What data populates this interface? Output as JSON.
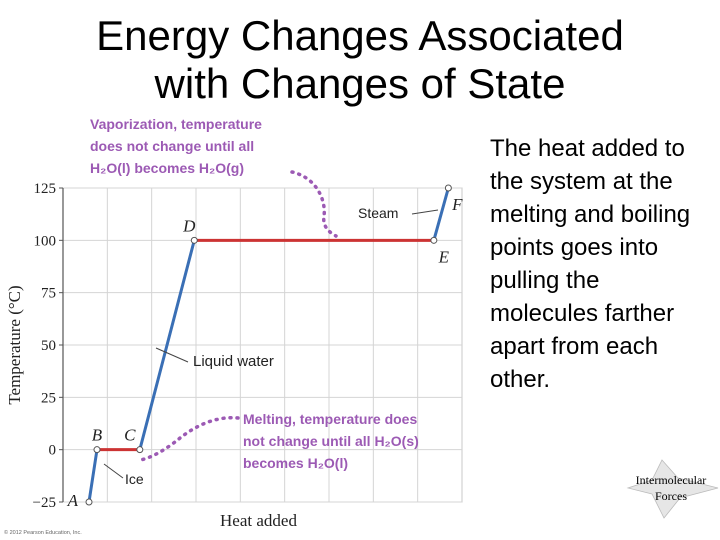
{
  "slide": {
    "title_line1": "Energy Changes Associated",
    "title_line2": "with Changes of State",
    "body": "The heat added to the system at the melting and boiling points goes into pulling the molecules farther apart from each other.",
    "footer_line1": "Intermolecular",
    "footer_line2": "Forces"
  },
  "chart_data": {
    "type": "line",
    "title": "",
    "xlabel": "Heat added",
    "ylabel": "Temperature (°C)",
    "ylim": [
      -25,
      125
    ],
    "yticks": [
      125,
      100,
      75,
      50,
      25,
      0,
      -25
    ],
    "grid": true,
    "copyright": "© 2012 Pearson Education, Inc.",
    "series": [
      {
        "segments": [
          {
            "from": "A",
            "to": "B",
            "phase": "solid",
            "y": [
              -25,
              0
            ],
            "color": "#3a6fb5"
          },
          {
            "from": "B",
            "to": "C",
            "phase": "melting",
            "y": [
              0,
              0
            ],
            "color": "#cc3333"
          },
          {
            "from": "C",
            "to": "D",
            "phase": "liquid",
            "y": [
              0,
              100
            ],
            "color": "#3a6fb5"
          },
          {
            "from": "D",
            "to": "E",
            "phase": "vaporization",
            "y": [
              100,
              100
            ],
            "color": "#cc3333"
          },
          {
            "from": "E",
            "to": "F",
            "phase": "gas",
            "y": [
              100,
              125
            ],
            "color": "#3a6fb5"
          }
        ],
        "points": [
          {
            "label": "A",
            "x": 0.0,
            "y": -25
          },
          {
            "label": "B",
            "x": 0.022,
            "y": 0
          },
          {
            "label": "C",
            "x": 0.14,
            "y": 0
          },
          {
            "label": "D",
            "x": 0.29,
            "y": 100
          },
          {
            "label": "E",
            "x": 0.95,
            "y": 100
          },
          {
            "label": "F",
            "x": 0.99,
            "y": 125
          }
        ]
      }
    ],
    "annotations": {
      "vaporization": [
        "Vaporization, temperature",
        "does not change until all",
        "H₂O(l) becomes H₂O(g)"
      ],
      "melting": [
        "Melting, temperature does",
        "not change until all H₂O(s)",
        "becomes H₂O(l)"
      ],
      "steam": "Steam",
      "liquid_water": "Liquid water",
      "ice": "Ice"
    },
    "annotation_color": "#9c5ab4"
  }
}
